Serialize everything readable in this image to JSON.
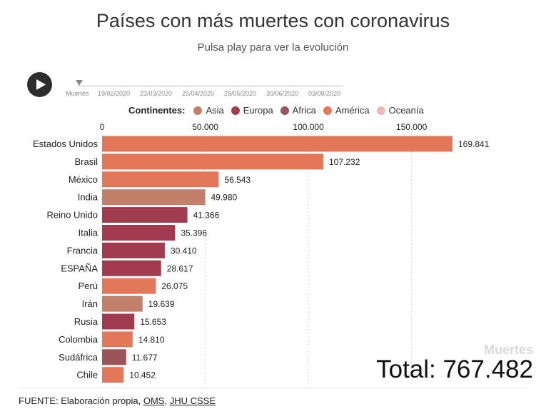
{
  "header": {
    "title": "Países con más muertes con coronavirus",
    "subtitle": "Pulsa play para ver la evolución"
  },
  "timeline": {
    "label": "Muertes",
    "dates": [
      "19/02/2020",
      "23/03/2020",
      "25/04/2020",
      "28/05/2020",
      "30/06/2020",
      "03/08/2020"
    ]
  },
  "legend": {
    "title": "Continentes:",
    "items": [
      {
        "name": "Asia",
        "color": "#c2806a"
      },
      {
        "name": "Europa",
        "color": "#a13b50"
      },
      {
        "name": "África",
        "color": "#9b5458"
      },
      {
        "name": "América",
        "color": "#e2775a"
      },
      {
        "name": "Oceanía",
        "color": "#f2b8b8"
      }
    ]
  },
  "chart_data": {
    "type": "bar",
    "orientation": "horizontal",
    "categories": [
      "Estados Unidos",
      "Brasil",
      "México",
      "India",
      "Reino Unido",
      "Italia",
      "Francia",
      "ESPAÑA",
      "Perú",
      "Irán",
      "Rusia",
      "Colombia",
      "Sudáfrica",
      "Chile"
    ],
    "values": [
      169841,
      107232,
      56543,
      49980,
      41366,
      35396,
      30410,
      28617,
      26075,
      19639,
      15653,
      14810,
      11677,
      10452
    ],
    "value_labels": [
      "169.841",
      "107.232",
      "56.543",
      "49.980",
      "41.366",
      "35.396",
      "30.410",
      "28.617",
      "26.075",
      "19.639",
      "15.653",
      "14.810",
      "11.677",
      "10.452"
    ],
    "continents": [
      "América",
      "América",
      "América",
      "Asia",
      "Europa",
      "Europa",
      "Europa",
      "Europa",
      "América",
      "Asia",
      "Europa",
      "América",
      "África",
      "América"
    ],
    "xticks": [
      0,
      50000,
      100000,
      150000
    ],
    "xtick_labels": [
      "0",
      "50.000",
      "100.000",
      "150.000"
    ],
    "xlim": [
      0,
      170000
    ],
    "xlabel": "Muertes",
    "grid": true,
    "legend_position": "top"
  },
  "total": {
    "label": "Total:",
    "value": "767.482"
  },
  "footer": {
    "prefix": "FUENTE: Elaboración propia, ",
    "link1": "OMS",
    "separator": ", ",
    "link2": "JHU CSSE"
  }
}
